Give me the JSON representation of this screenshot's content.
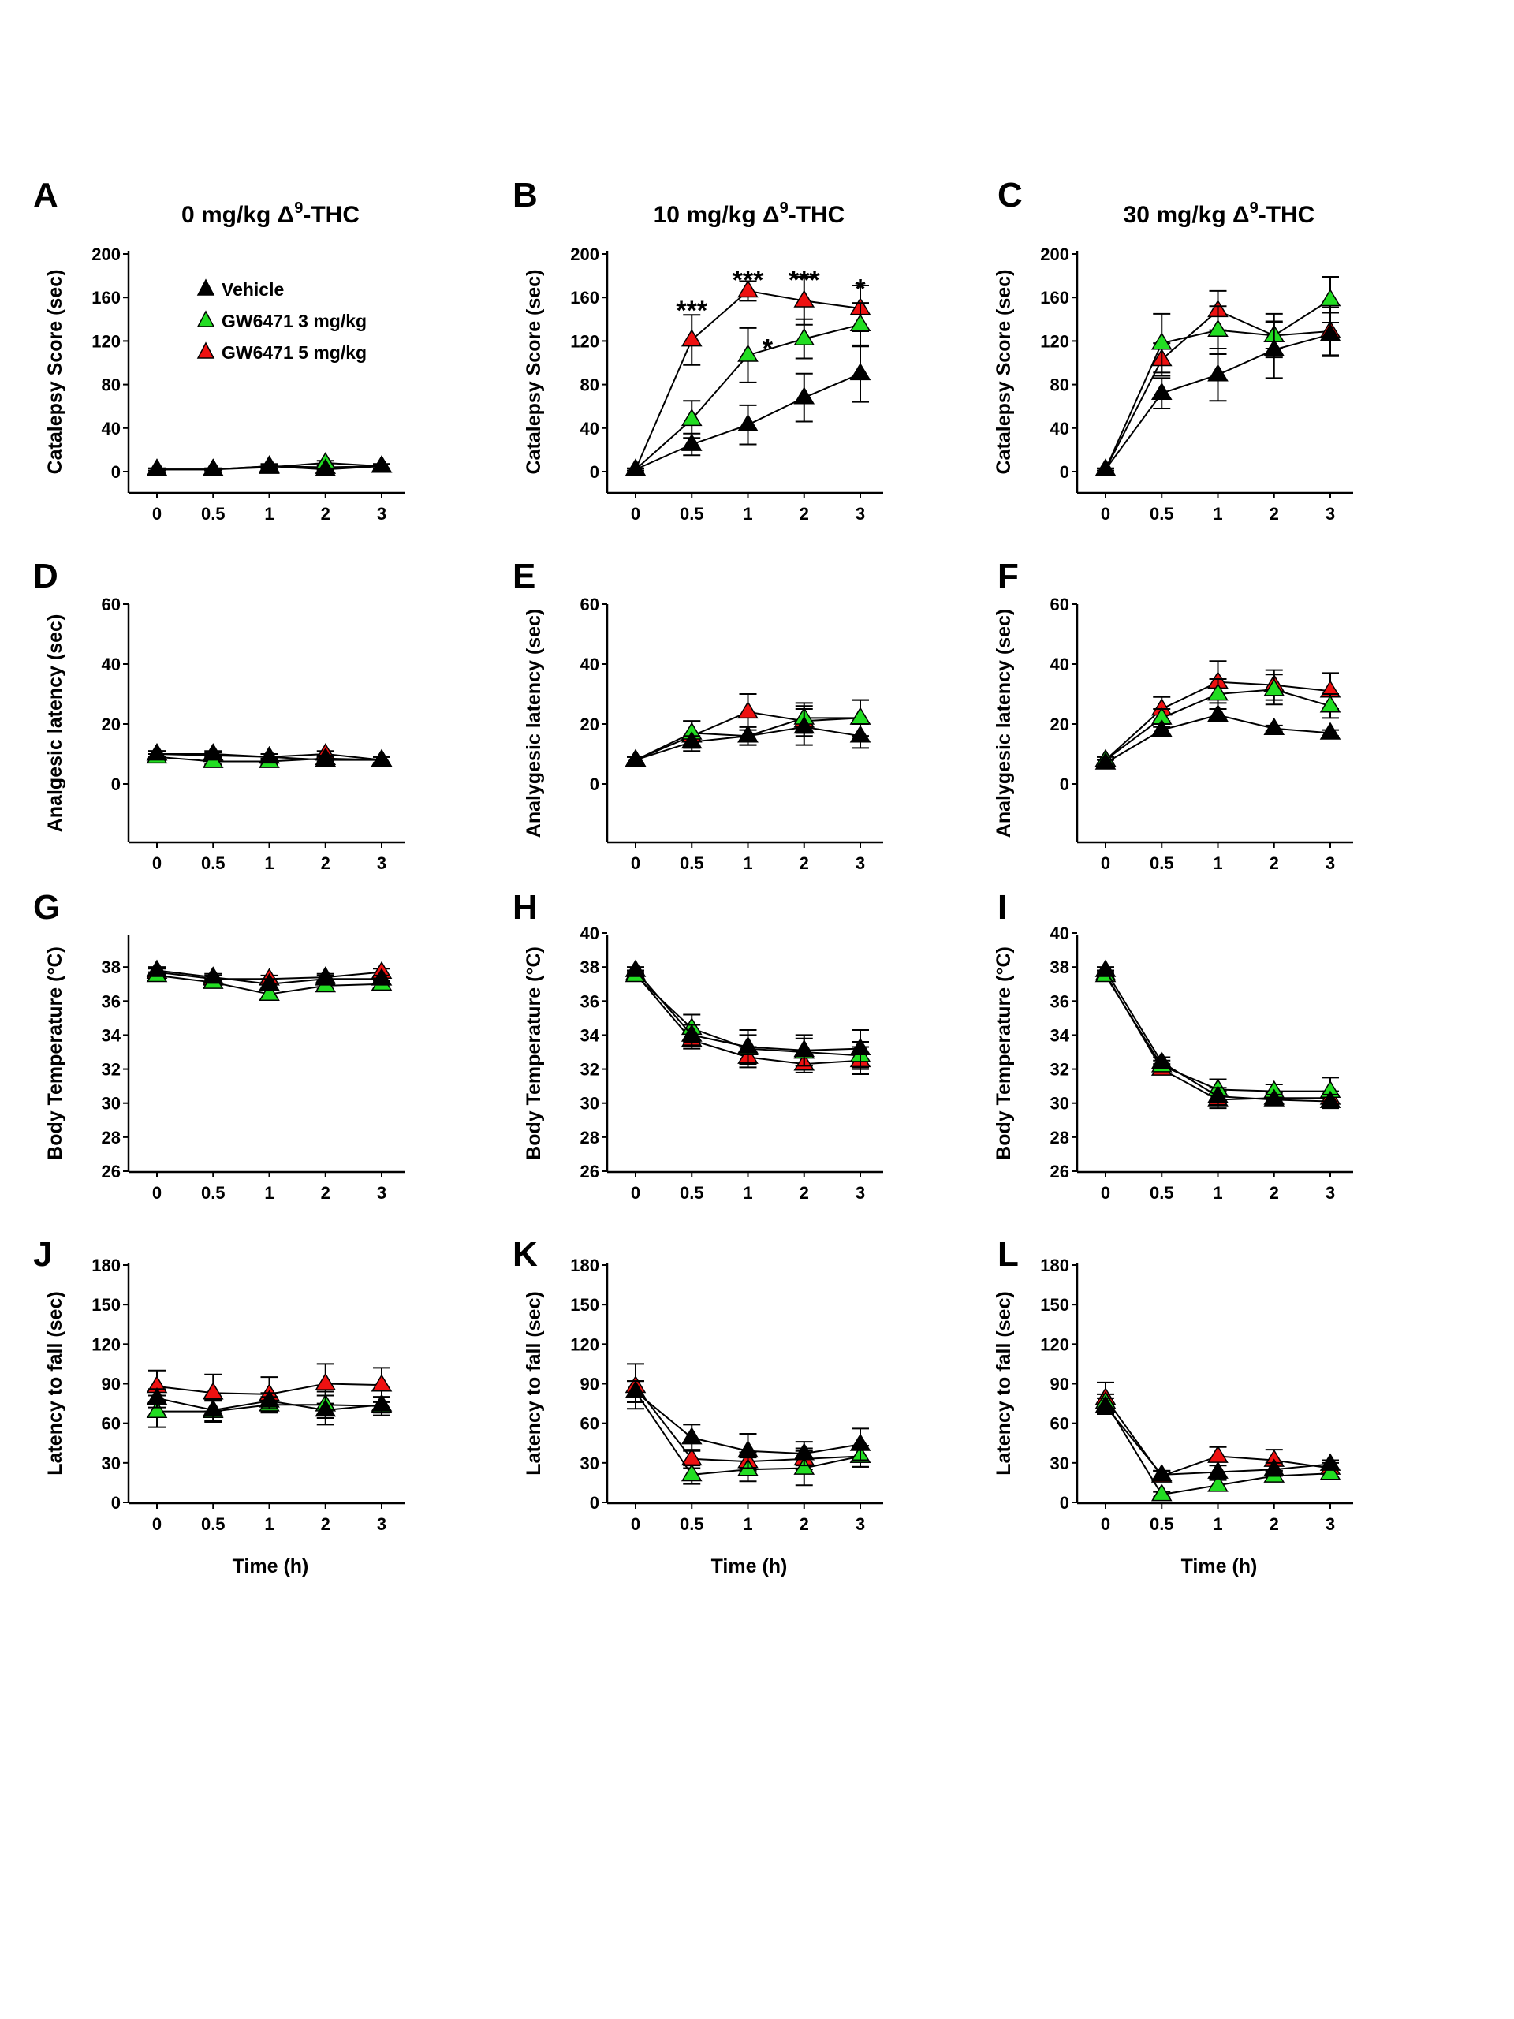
{
  "figure": {
    "legend": [
      {
        "name": "Vehicle",
        "color": "#000000"
      },
      {
        "name": "GW6471 3 mg/kg",
        "color": "#22dd22"
      },
      {
        "name": "GW6471 5 mg/kg",
        "color": "#ee1111"
      }
    ]
  },
  "chart_data": [
    {
      "panel": "A",
      "type": "line",
      "title": "0 mg/kg Δ⁹-THC",
      "title_parts": {
        "pre": "0 mg/kg Δ",
        "sup": "9",
        "post": "-THC"
      },
      "xlabel": "",
      "ylabel": "Catalepsy Score (sec)",
      "x": [
        0,
        0.5,
        1,
        2,
        3
      ],
      "x_tick_labels": [
        "0",
        "0.5",
        "1",
        "2",
        "3"
      ],
      "ylim": [
        -20,
        200
      ],
      "y_ticks": [
        0,
        40,
        80,
        120,
        160,
        200
      ],
      "y_tick_labels": [
        "0",
        "40",
        "80",
        "120",
        "160",
        "200"
      ],
      "legend_position": "top-left",
      "series": [
        {
          "name": "Vehicle",
          "values": [
            2,
            2,
            5,
            2,
            5
          ],
          "errors": [
            1,
            1,
            2,
            1,
            2
          ]
        },
        {
          "name": "GW6471 3 mg/kg",
          "values": [
            2,
            2,
            4,
            8,
            5
          ],
          "errors": [
            1,
            1,
            2,
            2,
            2
          ]
        },
        {
          "name": "GW6471 5 mg/kg",
          "values": [
            2,
            2,
            5,
            4,
            5
          ],
          "errors": [
            1,
            1,
            2,
            2,
            2
          ]
        }
      ],
      "annotations": []
    },
    {
      "panel": "B",
      "type": "line",
      "title": "10 mg/kg Δ⁹-THC",
      "title_parts": {
        "pre": "10 mg/kg Δ",
        "sup": "9",
        "post": "-THC"
      },
      "xlabel": "",
      "ylabel": "Catalepsy Score (sec)",
      "x": [
        0,
        0.5,
        1,
        2,
        3
      ],
      "x_tick_labels": [
        "0",
        "0.5",
        "1",
        "2",
        "3"
      ],
      "ylim": [
        -20,
        200
      ],
      "y_ticks": [
        0,
        40,
        80,
        120,
        160,
        200
      ],
      "y_tick_labels": [
        "0",
        "40",
        "80",
        "120",
        "160",
        "200"
      ],
      "series": [
        {
          "name": "Vehicle",
          "values": [
            2,
            25,
            43,
            68,
            90
          ],
          "errors": [
            1,
            10,
            18,
            22,
            26
          ]
        },
        {
          "name": "GW6471 3 mg/kg",
          "values": [
            2,
            48,
            107,
            122,
            135
          ],
          "errors": [
            1,
            17,
            25,
            18,
            20
          ]
        },
        {
          "name": "GW6471 5 mg/kg",
          "values": [
            2,
            121,
            166,
            157,
            150
          ],
          "errors": [
            1,
            23,
            9,
            22,
            21
          ]
        }
      ],
      "annotations": [
        {
          "x": 0.5,
          "y": 150,
          "text": "***"
        },
        {
          "x": 1,
          "y": 178,
          "text": "***"
        },
        {
          "x": 2,
          "y": 178,
          "text": "***"
        },
        {
          "x": 3,
          "y": 170,
          "text": "*"
        },
        {
          "x": 1,
          "y": 115,
          "text": "*",
          "dx": 0.35
        }
      ]
    },
    {
      "panel": "C",
      "type": "line",
      "title": "30 mg/kg Δ⁹-THC",
      "title_parts": {
        "pre": "30 mg/kg Δ",
        "sup": "9",
        "post": "-THC"
      },
      "xlabel": "",
      "ylabel": "Catalepsy Score (sec)",
      "x": [
        0,
        0.5,
        1,
        2,
        3
      ],
      "x_tick_labels": [
        "0",
        "0.5",
        "1",
        "2",
        "3"
      ],
      "ylim": [
        -20,
        200
      ],
      "y_ticks": [
        0,
        40,
        80,
        120,
        160,
        200
      ],
      "y_tick_labels": [
        "0",
        "40",
        "80",
        "120",
        "160",
        "200"
      ],
      "series": [
        {
          "name": "Vehicle",
          "values": [
            2,
            72,
            89,
            112,
            126
          ],
          "errors": [
            1,
            14,
            24,
            26,
            20
          ]
        },
        {
          "name": "GW6471 3 mg/kg",
          "values": [
            2,
            118,
            130,
            125,
            158
          ],
          "errors": [
            1,
            27,
            22,
            20,
            21
          ]
        },
        {
          "name": "GW6471 5 mg/kg",
          "values": [
            2,
            103,
            148,
            125,
            129
          ],
          "errors": [
            1,
            15,
            18,
            12,
            22
          ]
        }
      ],
      "annotations": []
    },
    {
      "panel": "D",
      "type": "line",
      "title": "",
      "xlabel": "",
      "ylabel": "Analgesic latency (sec)",
      "x": [
        0,
        0.5,
        1,
        2,
        3
      ],
      "x_tick_labels": [
        "0",
        "0.5",
        "1",
        "2",
        "3"
      ],
      "ylim": [
        -20,
        60
      ],
      "y_ticks": [
        0,
        20,
        40,
        60
      ],
      "y_tick_labels": [
        "0",
        "20",
        "40",
        "60"
      ],
      "series": [
        {
          "name": "Vehicle",
          "values": [
            10,
            10,
            9,
            8,
            8
          ],
          "errors": [
            1,
            1,
            1,
            1,
            1
          ]
        },
        {
          "name": "GW6471 3 mg/kg",
          "values": [
            9,
            7.5,
            7.5,
            8.5,
            8
          ],
          "errors": [
            1,
            1,
            1,
            1,
            1
          ]
        },
        {
          "name": "GW6471 5 mg/kg",
          "values": [
            10,
            9.5,
            9,
            10,
            8
          ],
          "errors": [
            1,
            1,
            1,
            1,
            1
          ]
        }
      ],
      "annotations": []
    },
    {
      "panel": "E",
      "type": "line",
      "title": "",
      "xlabel": "",
      "ylabel": "Analygesic latency (sec)",
      "x": [
        0,
        0.5,
        1,
        2,
        3
      ],
      "x_tick_labels": [
        "0",
        "0.5",
        "1",
        "2",
        "3"
      ],
      "ylim": [
        -20,
        60
      ],
      "y_ticks": [
        0,
        20,
        40,
        60
      ],
      "y_tick_labels": [
        "0",
        "20",
        "40",
        "60"
      ],
      "series": [
        {
          "name": "Vehicle",
          "values": [
            8,
            14,
            16,
            19,
            16
          ],
          "errors": [
            1,
            2,
            3,
            6,
            4
          ]
        },
        {
          "name": "GW6471 3 mg/kg",
          "values": [
            8,
            17,
            16,
            22,
            22
          ],
          "errors": [
            1,
            4,
            3,
            5,
            6
          ]
        },
        {
          "name": "GW6471 5 mg/kg",
          "values": [
            8,
            16,
            24,
            21,
            22
          ],
          "errors": [
            1,
            5,
            6,
            5,
            6
          ]
        }
      ],
      "annotations": []
    },
    {
      "panel": "F",
      "type": "line",
      "title": "",
      "xlabel": "",
      "ylabel": "Analygesic latency (sec)",
      "x": [
        0,
        0.5,
        1,
        2,
        3
      ],
      "x_tick_labels": [
        "0",
        "0.5",
        "1",
        "2",
        "3"
      ],
      "ylim": [
        -20,
        60
      ],
      "y_ticks": [
        0,
        20,
        40,
        60
      ],
      "y_tick_labels": [
        "0",
        "20",
        "40",
        "60"
      ],
      "series": [
        {
          "name": "Vehicle",
          "values": [
            7,
            18,
            23,
            18.5,
            17
          ],
          "errors": [
            1,
            2,
            2,
            1,
            1
          ]
        },
        {
          "name": "GW6471 3 mg/kg",
          "values": [
            8,
            22,
            30,
            31.5,
            26
          ],
          "errors": [
            1,
            3,
            5,
            5,
            4
          ]
        },
        {
          "name": "GW6471 5 mg/kg",
          "values": [
            8,
            25,
            34,
            33,
            31
          ],
          "errors": [
            1,
            4,
            7,
            5,
            6
          ]
        }
      ],
      "annotations": []
    },
    {
      "panel": "G",
      "type": "line",
      "title": "",
      "xlabel": "",
      "ylabel": "Body Temperature (°C)",
      "x": [
        0,
        0.5,
        1,
        2,
        3
      ],
      "x_tick_labels": [
        "0",
        "0.5",
        "1",
        "2",
        "3"
      ],
      "ylim": [
        26,
        40
      ],
      "y_ticks": [
        26,
        28,
        30,
        32,
        34,
        36,
        38
      ],
      "y_tick_labels": [
        "26",
        "28",
        "30",
        "32",
        "34",
        "36",
        "38"
      ],
      "series": [
        {
          "name": "Vehicle",
          "values": [
            37.8,
            37.4,
            37.0,
            37.3,
            37.3
          ],
          "errors": [
            0.2,
            0.2,
            0.3,
            0.2,
            0.2
          ]
        },
        {
          "name": "GW6471 3 mg/kg",
          "values": [
            37.5,
            37.1,
            36.4,
            36.9,
            37.0
          ],
          "errors": [
            0.2,
            0.2,
            0.3,
            0.2,
            0.2
          ]
        },
        {
          "name": "GW6471 5 mg/kg",
          "values": [
            37.7,
            37.3,
            37.3,
            37.4,
            37.7
          ],
          "errors": [
            0.2,
            0.2,
            0.2,
            0.2,
            0.2
          ]
        }
      ],
      "annotations": []
    },
    {
      "panel": "H",
      "type": "line",
      "title": "",
      "xlabel": "",
      "ylabel": "Body Temperature (°C)",
      "x": [
        0,
        0.5,
        1,
        2,
        3
      ],
      "x_tick_labels": [
        "0",
        "0.5",
        "1",
        "2",
        "3"
      ],
      "ylim": [
        26,
        40
      ],
      "y_ticks": [
        26,
        28,
        30,
        32,
        34,
        36,
        38,
        40
      ],
      "y_tick_labels": [
        "26",
        "28",
        "30",
        "32",
        "34",
        "36",
        "38",
        "40"
      ],
      "series": [
        {
          "name": "Vehicle",
          "values": [
            37.8,
            34.0,
            33.3,
            33.1,
            33.2
          ],
          "errors": [
            0.2,
            0.6,
            1.0,
            0.9,
            1.1
          ]
        },
        {
          "name": "GW6471 3 mg/kg",
          "values": [
            37.5,
            34.4,
            33.2,
            33.0,
            32.8
          ],
          "errors": [
            0.2,
            0.8,
            0.8,
            0.8,
            0.8
          ]
        },
        {
          "name": "GW6471 5 mg/kg",
          "values": [
            37.6,
            33.7,
            32.7,
            32.3,
            32.5
          ],
          "errors": [
            0.2,
            0.5,
            0.6,
            0.5,
            0.8
          ]
        }
      ],
      "annotations": []
    },
    {
      "panel": "I",
      "type": "line",
      "title": "",
      "xlabel": "",
      "ylabel": "Body Temperature (°C)",
      "x": [
        0,
        0.5,
        1,
        2,
        3
      ],
      "x_tick_labels": [
        "0",
        "0.5",
        "1",
        "2",
        "3"
      ],
      "ylim": [
        26,
        40
      ],
      "y_ticks": [
        26,
        28,
        30,
        32,
        34,
        36,
        38,
        40
      ],
      "y_tick_labels": [
        "26",
        "28",
        "30",
        "32",
        "34",
        "36",
        "38",
        "40"
      ],
      "series": [
        {
          "name": "Vehicle",
          "values": [
            37.8,
            32.4,
            30.4,
            30.2,
            30.1
          ],
          "errors": [
            0.2,
            0.3,
            0.5,
            0.3,
            0.4
          ]
        },
        {
          "name": "GW6471 3 mg/kg",
          "values": [
            37.5,
            32.2,
            30.8,
            30.7,
            30.7
          ],
          "errors": [
            0.2,
            0.3,
            0.6,
            0.4,
            0.8
          ]
        },
        {
          "name": "GW6471 5 mg/kg",
          "values": [
            37.6,
            32.0,
            30.2,
            30.3,
            30.3
          ],
          "errors": [
            0.2,
            0.3,
            0.5,
            0.3,
            0.4
          ]
        }
      ],
      "annotations": []
    },
    {
      "panel": "J",
      "type": "line",
      "title": "",
      "xlabel": "Time (h)",
      "ylabel": "Latency to fall (sec)",
      "x": [
        0,
        0.5,
        1,
        2,
        3
      ],
      "x_tick_labels": [
        "0",
        "0.5",
        "1",
        "2",
        "3"
      ],
      "ylim": [
        0,
        180
      ],
      "y_ticks": [
        0,
        30,
        60,
        90,
        120,
        150,
        180
      ],
      "y_tick_labels": [
        "0",
        "30",
        "60",
        "90",
        "120",
        "150",
        "180"
      ],
      "series": [
        {
          "name": "Vehicle",
          "values": [
            79,
            70,
            77,
            70,
            74
          ],
          "errors": [
            7,
            8,
            6,
            11,
            6
          ]
        },
        {
          "name": "GW6471 3 mg/kg",
          "values": [
            69,
            69,
            74,
            74,
            73
          ],
          "errors": [
            12,
            8,
            6,
            10,
            7
          ]
        },
        {
          "name": "GW6471 5 mg/kg",
          "values": [
            88,
            83,
            82,
            90,
            89
          ],
          "errors": [
            12,
            14,
            13,
            15,
            13
          ]
        }
      ],
      "annotations": []
    },
    {
      "panel": "K",
      "type": "line",
      "title": "",
      "xlabel": "Time (h)",
      "ylabel": "Latency to fall (sec)",
      "x": [
        0,
        0.5,
        1,
        2,
        3
      ],
      "x_tick_labels": [
        "0",
        "0.5",
        "1",
        "2",
        "3"
      ],
      "ylim": [
        0,
        180
      ],
      "y_ticks": [
        0,
        30,
        60,
        90,
        120,
        150,
        180
      ],
      "y_tick_labels": [
        "0",
        "30",
        "60",
        "90",
        "120",
        "150",
        "180"
      ],
      "series": [
        {
          "name": "Vehicle",
          "values": [
            84,
            49,
            39,
            37,
            44
          ],
          "errors": [
            8,
            10,
            13,
            9,
            12
          ]
        },
        {
          "name": "GW6471 3 mg/kg",
          "values": [
            84,
            21,
            25,
            26,
            35
          ],
          "errors": [
            8,
            7,
            9,
            13,
            8
          ]
        },
        {
          "name": "GW6471 5 mg/kg",
          "values": [
            88,
            33,
            31,
            33,
            35
          ],
          "errors": [
            17,
            7,
            7,
            8,
            8
          ]
        }
      ],
      "annotations": []
    },
    {
      "panel": "L",
      "type": "line",
      "title": "",
      "xlabel": "Time (h)",
      "ylabel": "Latency to fall (sec)",
      "x": [
        0,
        0.5,
        1,
        2,
        3
      ],
      "x_tick_labels": [
        "0",
        "0.5",
        "1",
        "2",
        "3"
      ],
      "ylim": [
        0,
        180
      ],
      "y_ticks": [
        0,
        30,
        60,
        90,
        120,
        150,
        180
      ],
      "y_tick_labels": [
        "0",
        "30",
        "60",
        "90",
        "120",
        "150",
        "180"
      ],
      "series": [
        {
          "name": "Vehicle",
          "values": [
            73,
            21,
            23,
            25,
            29
          ],
          "errors": [
            6,
            3,
            5,
            5,
            3
          ]
        },
        {
          "name": "GW6471 3 mg/kg",
          "values": [
            76,
            6,
            13,
            20,
            22
          ],
          "errors": [
            6,
            2,
            4,
            4,
            3
          ]
        },
        {
          "name": "GW6471 5 mg/kg",
          "values": [
            79,
            20,
            35,
            32,
            26
          ],
          "errors": [
            12,
            4,
            7,
            8,
            4
          ]
        }
      ],
      "annotations": []
    }
  ]
}
